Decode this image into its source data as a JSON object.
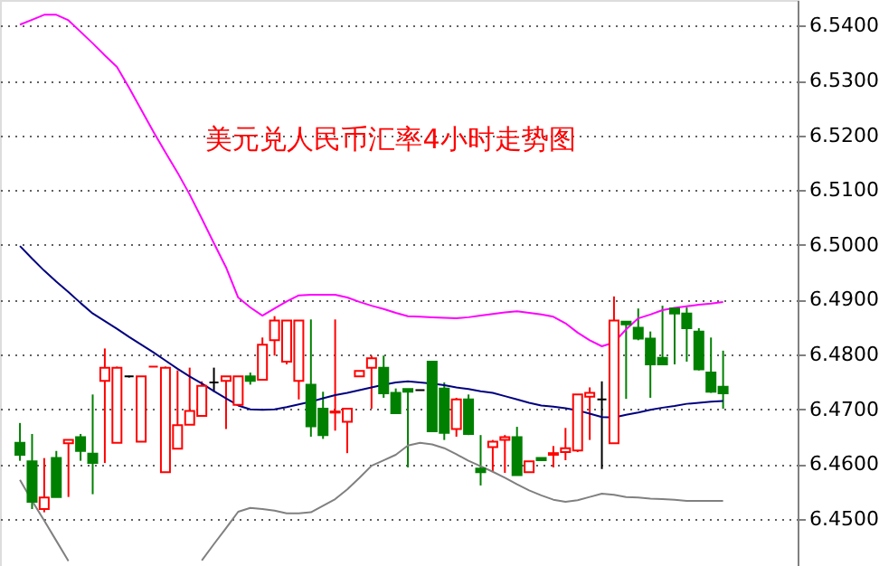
{
  "chart_data": {
    "type": "candlestick",
    "title": "美元兑人民币汇率4小时走势图",
    "categories": [
      null,
      null,
      null,
      null,
      null,
      null,
      null,
      null,
      null,
      null,
      null,
      null,
      null,
      null,
      null,
      null,
      null,
      null,
      null,
      null,
      null,
      null,
      null,
      null,
      null,
      null,
      null,
      null,
      null,
      null,
      null,
      null,
      null,
      null,
      null,
      null,
      null,
      null,
      null,
      null,
      null,
      null,
      null,
      null,
      null,
      null,
      null,
      null,
      null,
      null,
      null,
      null,
      null,
      null,
      null,
      null,
      null,
      null,
      null
    ],
    "ohlc": [
      [
        6.4639,
        6.4675,
        6.4606,
        6.4617
      ],
      [
        6.4605,
        6.4655,
        6.4518,
        6.4531
      ],
      [
        6.4518,
        6.4611,
        6.4512,
        6.4539
      ],
      [
        6.4611,
        6.4624,
        6.454,
        6.454
      ],
      [
        6.4638,
        6.4644,
        6.454,
        6.4644
      ],
      [
        6.4649,
        6.4655,
        6.4606,
        6.4624
      ],
      [
        6.4619,
        6.4727,
        6.4545,
        6.4602
      ],
      [
        6.4752,
        6.4811,
        6.4602,
        6.4776
      ],
      [
        6.4639,
        6.4778,
        6.4639,
        6.4776
      ],
      [
        6.476,
        6.4761,
        6.4758,
        6.476
      ],
      [
        6.4641,
        6.476,
        6.4641,
        6.476
      ],
      [
        6.4778,
        6.4778,
        6.4778,
        6.4778
      ],
      [
        6.4585,
        6.4778,
        6.4585,
        6.4776
      ],
      [
        6.4628,
        6.4771,
        6.4628,
        6.4671
      ],
      [
        6.4672,
        6.4776,
        6.4672,
        6.4697
      ],
      [
        6.4688,
        6.4751,
        6.4688,
        6.4743
      ],
      [
        6.4749,
        6.4776,
        6.4732,
        6.4749
      ],
      [
        6.4752,
        6.476,
        6.4664,
        6.476
      ],
      [
        6.4708,
        6.476,
        6.4708,
        6.476
      ],
      [
        6.476,
        6.4767,
        6.4745,
        6.4752
      ],
      [
        6.4754,
        6.4831,
        6.4754,
        6.4818
      ],
      [
        6.4826,
        6.487,
        6.4798,
        6.4862
      ],
      [
        6.4787,
        6.4862,
        6.4782,
        6.4862
      ],
      [
        6.4752,
        6.4862,
        6.4718,
        6.4862
      ],
      [
        6.4745,
        6.4864,
        6.465,
        6.4669
      ],
      [
        6.4701,
        6.4732,
        6.4646,
        6.4653
      ],
      [
        6.4694,
        6.4864,
        6.4661,
        6.4696
      ],
      [
        6.4677,
        6.4701,
        6.462,
        6.4701
      ],
      [
        6.476,
        6.477,
        6.476,
        6.477
      ],
      [
        6.4776,
        6.4798,
        6.4701,
        6.4793
      ],
      [
        6.4776,
        6.4798,
        6.4721,
        6.4729
      ],
      [
        6.473,
        6.4738,
        6.4693,
        6.4693
      ],
      [
        6.4737,
        6.4737,
        6.4594,
        6.4732
      ],
      [
        6.4735,
        6.4735,
        6.4735,
        6.4735
      ],
      [
        6.4787,
        6.4787,
        6.466,
        6.466
      ],
      [
        6.4738,
        6.4749,
        6.4644,
        6.4657
      ],
      [
        6.4664,
        6.4721,
        6.465,
        6.4718
      ],
      [
        6.4718,
        6.4727,
        6.4653,
        6.4655
      ],
      [
        6.4592,
        6.4653,
        6.4561,
        6.4585
      ],
      [
        6.4631,
        6.4644,
        6.4586,
        6.4641
      ],
      [
        6.4644,
        6.4653,
        6.4584,
        6.4649
      ],
      [
        6.4649,
        6.4668,
        6.458,
        6.458
      ],
      [
        6.4585,
        6.4605,
        6.4585,
        6.4605
      ],
      [
        6.4611,
        6.4611,
        6.4607,
        6.4607
      ],
      [
        6.4617,
        6.4633,
        6.4594,
        6.462
      ],
      [
        6.4622,
        6.4666,
        6.4607,
        6.4629
      ],
      [
        6.4625,
        6.4727,
        6.4622,
        6.4727
      ],
      [
        6.4723,
        6.474,
        6.4644,
        6.473
      ],
      [
        6.4718,
        6.4751,
        6.4591,
        6.4718
      ],
      [
        6.4638,
        6.4906,
        6.4638,
        6.4862
      ],
      [
        6.486,
        6.486,
        6.4719,
        6.4855
      ],
      [
        6.4849,
        6.4884,
        6.4826,
        6.4829
      ],
      [
        6.4829,
        6.4842,
        6.4721,
        6.4782
      ],
      [
        6.4794,
        6.4889,
        6.4782,
        6.4782
      ],
      [
        6.4884,
        6.4886,
        6.4782,
        6.4875
      ],
      [
        6.4875,
        6.4886,
        6.4787,
        6.4848
      ],
      [
        6.4842,
        6.4848,
        6.4771,
        6.4773
      ],
      [
        6.4767,
        6.4831,
        6.473,
        6.4732
      ],
      [
        6.4741,
        6.4807,
        6.4701,
        6.4729
      ]
    ],
    "colors": [
      "#008000",
      "#008000",
      "#ff0000",
      "#008000",
      "#ff0000",
      "#008000",
      "#008000",
      "#ff0000",
      "#ff0000",
      "#000000",
      "#ff0000",
      "#ff0000",
      "#ff0000",
      "#ff0000",
      "#ff0000",
      "#ff0000",
      "#000000",
      "#ff0000",
      "#ff0000",
      "#008000",
      "#ff0000",
      "#ff0000",
      "#ff0000",
      "#ff0000",
      "#008000",
      "#008000",
      "#ff0000",
      "#ff0000",
      "#ff0000",
      "#ff0000",
      "#008000",
      "#008000",
      "#008000",
      "#000000",
      "#008000",
      "#008000",
      "#ff0000",
      "#008000",
      "#008000",
      "#ff0000",
      "#ff0000",
      "#008000",
      "#ff0000",
      "#008000",
      "#ff0000",
      "#ff0000",
      "#ff0000",
      "#ff0000",
      "#000000",
      "#ff0000",
      "#008000",
      "#008000",
      "#008000",
      "#008000",
      "#008000",
      "#008000",
      "#008000",
      "#008000",
      "#008000"
    ],
    "series": [
      {
        "type": "line",
        "color": "#ff00ff",
        "values": [
          6.5402,
          6.5411,
          6.542,
          6.542,
          6.541,
          6.5389,
          6.5368,
          6.5346,
          6.5325,
          6.5287,
          6.5247,
          6.5207,
          6.5169,
          6.5132,
          6.5092,
          6.5048,
          6.5003,
          6.4959,
          6.4904,
          6.4886,
          6.4871,
          6.4884,
          6.4897,
          6.4908,
          6.4909,
          6.4909,
          6.4909,
          6.4904,
          6.4896,
          6.4889,
          6.4883,
          6.4876,
          6.487,
          6.4869,
          6.4868,
          6.4867,
          6.4866,
          6.4868,
          6.4871,
          6.4874,
          6.4877,
          6.4879,
          6.4876,
          6.4873,
          6.4869,
          6.4857,
          6.484,
          6.4826,
          6.4815,
          6.4822,
          6.4846,
          6.4866,
          6.4873,
          6.4881,
          6.4885,
          6.4888,
          6.4891,
          6.4893,
          6.4896
        ]
      },
      {
        "type": "line",
        "color": "#000080",
        "values": [
          6.4998,
          6.4975,
          6.4953,
          6.4933,
          6.4914,
          6.4894,
          6.4875,
          6.4861,
          6.4847,
          6.4832,
          6.4818,
          6.4804,
          6.4789,
          6.4774,
          6.476,
          6.4747,
          6.4733,
          6.472,
          6.4707,
          6.47,
          6.4699,
          6.47,
          6.4704,
          6.4709,
          6.4714,
          6.472,
          6.4726,
          6.473,
          6.4735,
          6.474,
          6.4745,
          6.4749,
          6.4751,
          6.4749,
          6.4747,
          6.4744,
          6.474,
          6.4737,
          6.4733,
          6.473,
          6.4724,
          6.4718,
          6.4712,
          6.4707,
          6.4705,
          6.4702,
          6.4698,
          6.4692,
          6.4686,
          6.4685,
          6.469,
          6.4694,
          6.4699,
          6.4703,
          6.4706,
          6.471,
          6.4712,
          6.4714,
          6.4715
        ]
      },
      {
        "type": "line",
        "color": "#808080",
        "values": [
          6.4571,
          6.4533,
          6.4497,
          6.446,
          6.4423,
          null,
          null,
          null,
          null,
          null,
          null,
          null,
          null,
          null,
          null,
          6.4424,
          6.4454,
          6.4483,
          6.4513,
          6.452,
          6.4518,
          6.4515,
          6.451,
          6.451,
          6.4512,
          6.4524,
          6.4536,
          6.4554,
          6.4575,
          6.4597,
          6.4607,
          6.4617,
          6.4634,
          6.4639,
          6.4636,
          6.4629,
          6.4618,
          6.4606,
          6.4596,
          6.4586,
          6.4575,
          6.4563,
          6.4552,
          6.4543,
          6.4535,
          6.4531,
          6.4534,
          6.454,
          6.4546,
          6.4544,
          6.454,
          6.4539,
          6.4537,
          6.4536,
          6.4535,
          6.4533,
          6.4533,
          6.4533,
          6.4533
        ]
      }
    ],
    "ylim": [
      6.4414,
      6.5447
    ],
    "yticks": [
      {
        "value": 6.45,
        "label": "6.4500"
      },
      {
        "value": 6.46,
        "label": "6.4600"
      },
      {
        "value": 6.47,
        "label": "6.4700"
      },
      {
        "value": 6.48,
        "label": "6.4800"
      },
      {
        "value": 6.49,
        "label": "6.4900"
      },
      {
        "value": 6.5,
        "label": "6.5000"
      },
      {
        "value": 6.51,
        "label": "6.5100"
      },
      {
        "value": 6.52,
        "label": "6.5200"
      },
      {
        "value": 6.53,
        "label": "6.5300"
      },
      {
        "value": 6.54,
        "label": "6.5400"
      }
    ],
    "grid": "y",
    "tick_labels": "y"
  }
}
